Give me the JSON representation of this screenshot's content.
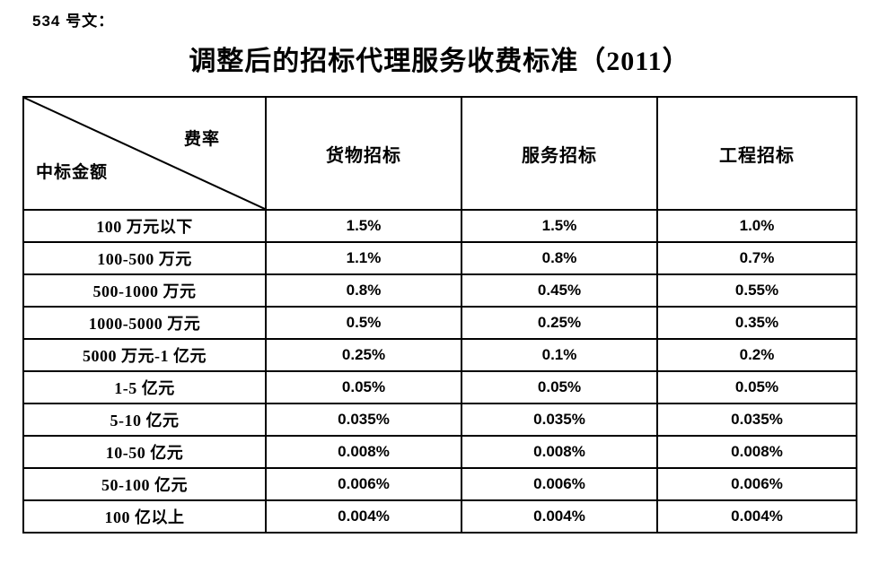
{
  "page": {
    "doc_label": "534 号文：",
    "title": "调整后的招标代理服务收费标准（2011）"
  },
  "table": {
    "corner": {
      "rate_label": "费率",
      "amount_label": "中标金额"
    },
    "columns": [
      "货物招标",
      "服务招标",
      "工程招标"
    ],
    "rows": [
      {
        "label": "100 万元以下",
        "values": [
          "1.5%",
          "1.5%",
          "1.0%"
        ]
      },
      {
        "label": "100-500 万元",
        "values": [
          "1.1%",
          "0.8%",
          "0.7%"
        ]
      },
      {
        "label": "500-1000 万元",
        "values": [
          "0.8%",
          "0.45%",
          "0.55%"
        ]
      },
      {
        "label": "1000-5000 万元",
        "values": [
          "0.5%",
          "0.25%",
          "0.35%"
        ]
      },
      {
        "label": "5000 万元-1 亿元",
        "values": [
          "0.25%",
          "0.1%",
          "0.2%"
        ]
      },
      {
        "label": "1-5 亿元",
        "values": [
          "0.05%",
          "0.05%",
          "0.05%"
        ]
      },
      {
        "label": "5-10 亿元",
        "values": [
          "0.035%",
          "0.035%",
          "0.035%"
        ]
      },
      {
        "label": "10-50 亿元",
        "values": [
          "0.008%",
          "0.008%",
          "0.008%"
        ]
      },
      {
        "label": "50-100 亿元",
        "values": [
          "0.006%",
          "0.006%",
          "0.006%"
        ]
      },
      {
        "label": "100 亿以上",
        "values": [
          "0.004%",
          "0.004%",
          "0.004%"
        ]
      }
    ],
    "colors": {
      "border": "#000000",
      "text": "#000000",
      "background": "#ffffff"
    }
  }
}
